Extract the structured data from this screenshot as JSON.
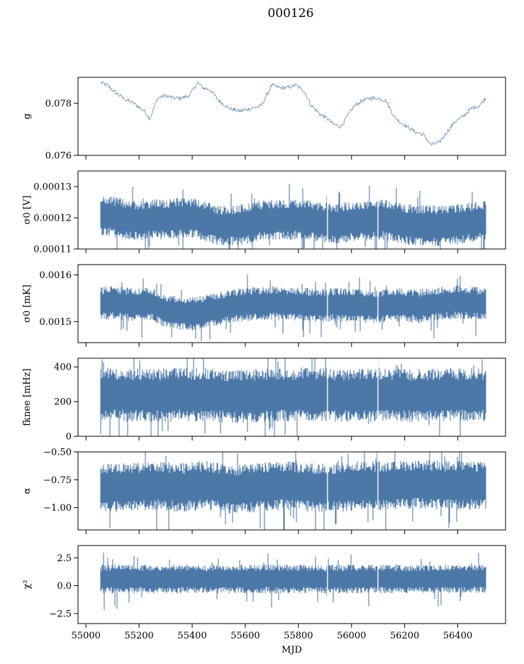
{
  "figure": {
    "title": "000126",
    "series_color": "#4C78A8"
  },
  "chart_data": [
    {
      "type": "line",
      "ylabel": "g",
      "ylim": [
        0.076,
        0.079
      ],
      "yticks": [
        0.076,
        0.078
      ],
      "ytick_labels": [
        "0.076",
        "0.078"
      ],
      "xlim": [
        54970,
        56580
      ],
      "xticks": [
        55000,
        55200,
        55400,
        55600,
        55800,
        56000,
        56200,
        56400
      ],
      "show_xtick_labels": false,
      "style": "trace",
      "grid": false,
      "series": [
        {
          "x": [
            55055,
            55080,
            55100,
            55140,
            55180,
            55220,
            55240,
            55270,
            55300,
            55330,
            55360,
            55390,
            55420,
            55440,
            55470,
            55500,
            55540,
            55580,
            55620,
            55660,
            55700,
            55730,
            55760,
            55790,
            55820,
            55850,
            55880,
            55910,
            55930,
            55960,
            55990,
            56010,
            56040,
            56070,
            56100,
            56130,
            56160,
            56180,
            56210,
            56240,
            56270,
            56300,
            56330,
            56360,
            56390,
            56420,
            56450,
            56480,
            56505
          ],
          "values": [
            0.0788,
            0.0787,
            0.0785,
            0.0782,
            0.078,
            0.0777,
            0.0774,
            0.0782,
            0.0783,
            0.0782,
            0.0782,
            0.0783,
            0.0788,
            0.0786,
            0.0785,
            0.0781,
            0.0778,
            0.0777,
            0.0778,
            0.0779,
            0.0787,
            0.0786,
            0.0786,
            0.0787,
            0.0785,
            0.0779,
            0.0776,
            0.0774,
            0.0772,
            0.0771,
            0.0776,
            0.0779,
            0.0781,
            0.0782,
            0.0782,
            0.0781,
            0.0775,
            0.0773,
            0.0771,
            0.0769,
            0.0768,
            0.0764,
            0.0765,
            0.0769,
            0.0773,
            0.0775,
            0.0778,
            0.0779,
            0.0782
          ]
        }
      ]
    },
    {
      "type": "line",
      "ylabel": "σ0 [V]",
      "ylim": [
        0.00011,
        0.000135
      ],
      "yticks": [
        0.00011,
        0.00012,
        0.00013
      ],
      "ytick_labels": [
        "0.00011",
        "0.00012",
        "0.00013"
      ],
      "xlim": [
        54970,
        56580
      ],
      "xticks": [
        55000,
        55200,
        55400,
        55600,
        55800,
        56000,
        56200,
        56400
      ],
      "show_xtick_labels": false,
      "style": "band",
      "grid": false,
      "series": [
        {
          "x": [
            55055,
            55100,
            55150,
            55200,
            55250,
            55300,
            55350,
            55400,
            55450,
            55500,
            55550,
            55600,
            55650,
            55700,
            55750,
            55800,
            55850,
            55900,
            55950,
            56000,
            56050,
            56100,
            56150,
            56200,
            56250,
            56300,
            56350,
            56400,
            56450,
            56505
          ],
          "values": [
            0.0001205,
            0.0001205,
            0.0001195,
            0.000119,
            0.0001195,
            0.0001195,
            0.00012,
            0.00012,
            0.000119,
            0.0001175,
            0.0001175,
            0.000118,
            0.000119,
            0.0001195,
            0.0001195,
            0.0001195,
            0.000119,
            0.0001185,
            0.000118,
            0.000119,
            0.000119,
            0.0001195,
            0.000119,
            0.000118,
            0.0001175,
            0.0001175,
            0.0001175,
            0.000118,
            0.0001185,
            0.000119
          ],
          "spread": 6.5e-06
        }
      ]
    },
    {
      "type": "line",
      "ylabel": "σ0 [mK]",
      "ylim": [
        0.001455,
        0.001622
      ],
      "yticks": [
        0.0015,
        0.0016
      ],
      "ytick_labels": [
        "0.0015",
        "0.0016"
      ],
      "xlim": [
        54970,
        56580
      ],
      "xticks": [
        55000,
        55200,
        55400,
        55600,
        55800,
        56000,
        56200,
        56400
      ],
      "show_xtick_labels": false,
      "style": "band",
      "grid": false,
      "series": [
        {
          "x": [
            55055,
            55100,
            55150,
            55200,
            55250,
            55300,
            55350,
            55400,
            55450,
            55500,
            55550,
            55600,
            55650,
            55700,
            55750,
            55800,
            55850,
            55900,
            55950,
            56000,
            56050,
            56100,
            56150,
            56200,
            56250,
            56300,
            56350,
            56400,
            56450,
            56505
          ],
          "values": [
            0.001538,
            0.001542,
            0.001538,
            0.001535,
            0.001538,
            0.001522,
            0.001518,
            0.001516,
            0.001522,
            0.001527,
            0.001533,
            0.001537,
            0.001538,
            0.00154,
            0.001537,
            0.001537,
            0.001535,
            0.001535,
            0.001537,
            0.001535,
            0.001533,
            0.001532,
            0.001537,
            0.001535,
            0.001533,
            0.001537,
            0.00154,
            0.001542,
            0.00154,
            0.001538
          ],
          "spread": 3.6e-05
        }
      ]
    },
    {
      "type": "line",
      "ylabel": "fknee [mHz]",
      "ylim": [
        0,
        450
      ],
      "yticks": [
        0,
        200,
        400
      ],
      "ytick_labels": [
        "0",
        "200",
        "400"
      ],
      "xlim": [
        54970,
        56580
      ],
      "xticks": [
        55000,
        55200,
        55400,
        55600,
        55800,
        56000,
        56200,
        56400
      ],
      "show_xtick_labels": false,
      "style": "band",
      "grid": false,
      "series": [
        {
          "x": [
            55055,
            55150,
            55250,
            55350,
            55450,
            55550,
            55650,
            55750,
            55850,
            55950,
            56050,
            56150,
            56250,
            56350,
            56450,
            56505
          ],
          "values": [
            240,
            240,
            235,
            240,
            240,
            230,
            235,
            240,
            240,
            235,
            235,
            240,
            235,
            240,
            240,
            240
          ],
          "spread": 155
        }
      ]
    },
    {
      "type": "line",
      "ylabel": "α",
      "ylim": [
        -1.2,
        -0.5
      ],
      "yticks": [
        -1.0,
        -0.75,
        -0.5
      ],
      "ytick_labels": [
        "−1.00",
        "−0.75",
        "−0.50"
      ],
      "xlim": [
        54970,
        56580
      ],
      "xticks": [
        55000,
        55200,
        55400,
        55600,
        55800,
        56000,
        56200,
        56400
      ],
      "show_xtick_labels": false,
      "style": "band",
      "grid": false,
      "series": [
        {
          "x": [
            55055,
            55150,
            55250,
            55350,
            55450,
            55550,
            55650,
            55750,
            55850,
            55950,
            56050,
            56150,
            56250,
            56350,
            56450,
            56505
          ],
          "values": [
            -0.82,
            -0.82,
            -0.8,
            -0.82,
            -0.8,
            -0.84,
            -0.82,
            -0.8,
            -0.82,
            -0.82,
            -0.8,
            -0.8,
            -0.79,
            -0.8,
            -0.8,
            -0.8
          ],
          "spread": 0.22
        }
      ]
    },
    {
      "type": "line",
      "ylabel": "χ²",
      "ylim": [
        -3.4,
        3.6
      ],
      "yticks": [
        -2.5,
        0.0,
        2.5
      ],
      "ytick_labels": [
        "−2.5",
        "0.0",
        "2.5"
      ],
      "xlim": [
        54970,
        56580
      ],
      "xticks": [
        55000,
        55200,
        55400,
        55600,
        55800,
        56000,
        56200,
        56400
      ],
      "xtick_labels": [
        "55000",
        "55200",
        "55400",
        "55600",
        "55800",
        "56000",
        "56200",
        "56400"
      ],
      "show_xtick_labels": true,
      "xlabel": "MJD",
      "style": "band",
      "grid": false,
      "series": [
        {
          "x": [
            55055,
            55150,
            55250,
            55350,
            55450,
            55550,
            55650,
            55750,
            55850,
            55950,
            56050,
            56150,
            56250,
            56350,
            56450,
            56505
          ],
          "values": [
            0.6,
            0.6,
            0.6,
            0.6,
            0.6,
            0.6,
            0.6,
            0.6,
            0.6,
            0.6,
            0.6,
            0.6,
            0.6,
            0.6,
            0.6,
            0.6
          ],
          "spread": 1.3
        }
      ]
    }
  ]
}
